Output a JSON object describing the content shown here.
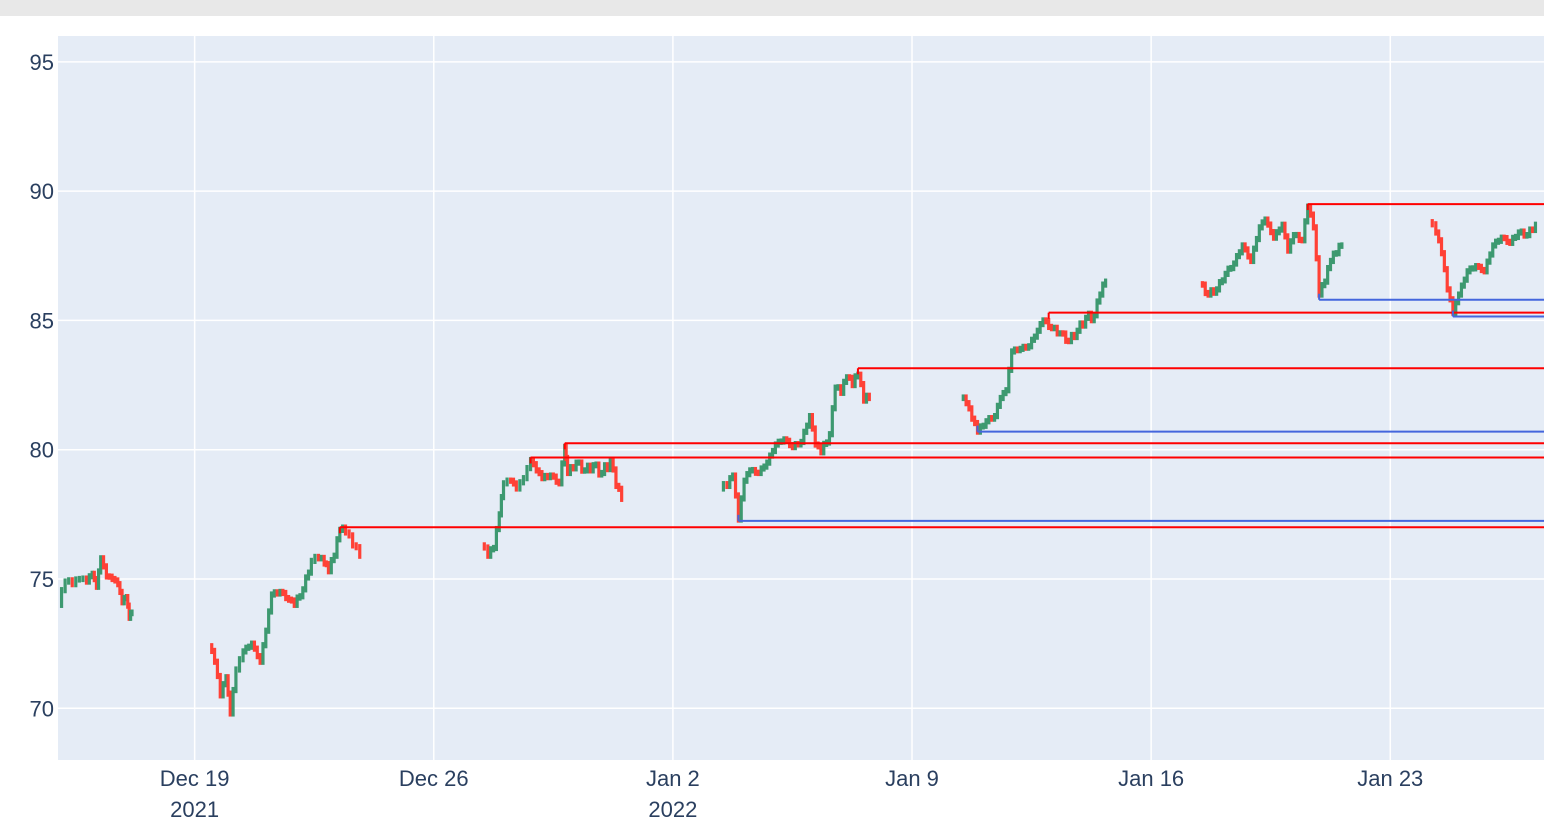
{
  "chart_data": {
    "type": "candlestick",
    "title": "",
    "xlabel": "",
    "ylabel": "",
    "colors": {
      "background": "#e5ecf6",
      "grid": "#ffffff",
      "increasing": "#3d9970",
      "decreasing": "#ff4136",
      "resistance": "#ff0000",
      "support": "#4466dd",
      "tick_text": "#2a3f5f"
    },
    "x_range": [
      "2021-12-15T00:00",
      "2022-01-27T12:00"
    ],
    "ylim": [
      68,
      96
    ],
    "grid": true,
    "legend": "none",
    "y_ticks": [
      {
        "value": 70,
        "label": "70"
      },
      {
        "value": 75,
        "label": "75"
      },
      {
        "value": 80,
        "label": "80"
      },
      {
        "value": 85,
        "label": "85"
      },
      {
        "value": 90,
        "label": "90"
      },
      {
        "value": 95,
        "label": "95"
      }
    ],
    "x_ticks": [
      {
        "date": "2021-12-19",
        "label": "Dec 19",
        "sublabel": "2021"
      },
      {
        "date": "2021-12-26",
        "label": "Dec 26",
        "sublabel": ""
      },
      {
        "date": "2022-01-02",
        "label": "Jan 2",
        "sublabel": "2022"
      },
      {
        "date": "2022-01-09",
        "label": "Jan 9",
        "sublabel": ""
      },
      {
        "date": "2022-01-16",
        "label": "Jan 16",
        "sublabel": ""
      },
      {
        "date": "2022-01-23",
        "label": "Jan 23",
        "sublabel": ""
      }
    ],
    "price_path": [
      {
        "segment": 1,
        "points": [
          [
            "2021-12-15T00:00",
            74.0
          ],
          [
            "2021-12-15T05:00",
            74.9
          ],
          [
            "2021-12-15T10:00",
            74.8
          ],
          [
            "2021-12-15T15:00",
            75.0
          ],
          [
            "2021-12-15T20:00",
            74.9
          ],
          [
            "2021-12-16T00:00",
            75.2
          ],
          [
            "2021-12-16T03:00",
            74.7
          ],
          [
            "2021-12-16T06:00",
            75.8
          ],
          [
            "2021-12-16T10:00",
            75.1
          ],
          [
            "2021-12-16T14:00",
            75.0
          ],
          [
            "2021-12-16T18:00",
            74.8
          ],
          [
            "2021-12-16T21:00",
            74.1
          ],
          [
            "2021-12-17T00:00",
            74.3
          ],
          [
            "2021-12-17T02:00",
            73.5
          ],
          [
            "2021-12-17T04:00",
            73.7
          ]
        ]
      },
      {
        "segment": 2,
        "points": [
          [
            "2021-12-19T10:00",
            72.4
          ],
          [
            "2021-12-19T14:00",
            71.8
          ],
          [
            "2021-12-19T18:00",
            70.5
          ],
          [
            "2021-12-19T22:00",
            71.2
          ],
          [
            "2021-12-20T01:00",
            69.8
          ],
          [
            "2021-12-20T05:00",
            71.5
          ],
          [
            "2021-12-20T10:00",
            72.2
          ],
          [
            "2021-12-20T16:00",
            72.5
          ],
          [
            "2021-12-20T22:00",
            71.8
          ],
          [
            "2021-12-21T02:00",
            73.0
          ],
          [
            "2021-12-21T06:00",
            74.4
          ],
          [
            "2021-12-21T12:00",
            74.5
          ],
          [
            "2021-12-21T18:00",
            74.2
          ],
          [
            "2021-12-21T22:00",
            74.0
          ],
          [
            "2021-12-22T04:00",
            74.6
          ],
          [
            "2021-12-22T10:00",
            75.7
          ],
          [
            "2021-12-22T15:00",
            75.8
          ],
          [
            "2021-12-22T19:00",
            75.6
          ],
          [
            "2021-12-22T22:00",
            75.3
          ],
          [
            "2021-12-23T02:00",
            75.9
          ],
          [
            "2021-12-23T06:00",
            76.9
          ],
          [
            "2021-12-23T10:00",
            76.8
          ],
          [
            "2021-12-23T15:00",
            76.3
          ],
          [
            "2021-12-23T20:00",
            75.9
          ]
        ]
      },
      {
        "segment": 3,
        "points": [
          [
            "2021-12-27T09:00",
            76.3
          ],
          [
            "2021-12-27T14:00",
            75.9
          ],
          [
            "2021-12-27T18:00",
            76.2
          ],
          [
            "2021-12-27T22:00",
            77.5
          ],
          [
            "2021-12-28T01:00",
            78.7
          ],
          [
            "2021-12-28T06:00",
            78.8
          ],
          [
            "2021-12-28T10:00",
            78.5
          ],
          [
            "2021-12-28T15:00",
            78.9
          ],
          [
            "2021-12-28T20:00",
            79.6
          ],
          [
            "2021-12-29T00:00",
            79.2
          ],
          [
            "2021-12-29T04:00",
            78.9
          ],
          [
            "2021-12-29T10:00",
            79.0
          ],
          [
            "2021-12-29T16:00",
            78.7
          ],
          [
            "2021-12-29T20:00",
            80.1
          ],
          [
            "2021-12-29T22:00",
            79.1
          ],
          [
            "2021-12-30T04:00",
            79.5
          ],
          [
            "2021-12-30T10:00",
            79.2
          ],
          [
            "2021-12-30T16:00",
            79.4
          ],
          [
            "2021-12-30T22:00",
            79.1
          ],
          [
            "2021-12-31T04:00",
            79.6
          ],
          [
            "2021-12-31T08:00",
            78.6
          ],
          [
            "2021-12-31T12:00",
            78.1
          ]
        ]
      },
      {
        "segment": 4,
        "points": [
          [
            "2022-01-03T09:00",
            78.5
          ],
          [
            "2022-01-03T14:00",
            78.6
          ],
          [
            "2022-01-03T18:00",
            79.0
          ],
          [
            "2022-01-03T22:00",
            77.3
          ],
          [
            "2022-01-04T02:00",
            78.8
          ],
          [
            "2022-01-04T06:00",
            79.2
          ],
          [
            "2022-01-04T12:00",
            79.1
          ],
          [
            "2022-01-04T18:00",
            79.5
          ],
          [
            "2022-01-05T00:00",
            80.2
          ],
          [
            "2022-01-05T06:00",
            80.4
          ],
          [
            "2022-01-05T12:00",
            80.1
          ],
          [
            "2022-01-05T18:00",
            80.3
          ],
          [
            "2022-01-06T00:00",
            81.3
          ],
          [
            "2022-01-06T04:00",
            80.2
          ],
          [
            "2022-01-06T08:00",
            79.9
          ],
          [
            "2022-01-06T14:00",
            80.6
          ],
          [
            "2022-01-06T18:00",
            82.4
          ],
          [
            "2022-01-06T22:00",
            82.2
          ],
          [
            "2022-01-07T02:00",
            82.8
          ],
          [
            "2022-01-07T06:00",
            82.5
          ],
          [
            "2022-01-07T10:00",
            82.9
          ],
          [
            "2022-01-07T14:00",
            81.9
          ],
          [
            "2022-01-07T18:00",
            82.0
          ]
        ]
      },
      {
        "segment": 5,
        "points": [
          [
            "2022-01-10T10:00",
            82.0
          ],
          [
            "2022-01-10T14:00",
            81.8
          ],
          [
            "2022-01-10T18:00",
            81.2
          ],
          [
            "2022-01-10T22:00",
            80.7
          ],
          [
            "2022-01-11T04:00",
            81.1
          ],
          [
            "2022-01-11T10:00",
            81.3
          ],
          [
            "2022-01-11T14:00",
            82.0
          ],
          [
            "2022-01-11T18:00",
            82.3
          ],
          [
            "2022-01-11T22:00",
            83.8
          ],
          [
            "2022-01-12T04:00",
            83.9
          ],
          [
            "2022-01-12T10:00",
            84.0
          ],
          [
            "2022-01-12T16:00",
            84.6
          ],
          [
            "2022-01-12T20:00",
            85.0
          ],
          [
            "2022-01-13T02:00",
            84.7
          ],
          [
            "2022-01-13T08:00",
            84.5
          ],
          [
            "2022-01-13T14:00",
            84.2
          ],
          [
            "2022-01-13T20:00",
            84.6
          ],
          [
            "2022-01-14T02:00",
            85.1
          ],
          [
            "2022-01-14T08:00",
            85.2
          ],
          [
            "2022-01-14T12:00",
            86.0
          ],
          [
            "2022-01-14T16:00",
            86.5
          ]
        ]
      },
      {
        "segment": 6,
        "points": [
          [
            "2022-01-17T10:00",
            86.4
          ],
          [
            "2022-01-17T16:00",
            86.0
          ],
          [
            "2022-01-17T22:00",
            86.2
          ],
          [
            "2022-01-18T04:00",
            86.8
          ],
          [
            "2022-01-18T10:00",
            87.2
          ],
          [
            "2022-01-18T16:00",
            87.9
          ],
          [
            "2022-01-18T22:00",
            87.3
          ],
          [
            "2022-01-19T04:00",
            88.6
          ],
          [
            "2022-01-19T08:00",
            88.9
          ],
          [
            "2022-01-19T14:00",
            88.2
          ],
          [
            "2022-01-19T20:00",
            88.7
          ],
          [
            "2022-01-20T00:00",
            87.7
          ],
          [
            "2022-01-20T04:00",
            88.3
          ],
          [
            "2022-01-20T10:00",
            88.1
          ],
          [
            "2022-01-20T14:00",
            89.4
          ],
          [
            "2022-01-20T18:00",
            88.6
          ],
          [
            "2022-01-20T22:00",
            86.0
          ],
          [
            "2022-01-21T02:00",
            86.5
          ],
          [
            "2022-01-21T06:00",
            87.3
          ],
          [
            "2022-01-21T10:00",
            87.6
          ],
          [
            "2022-01-21T14:00",
            87.9
          ]
        ]
      },
      {
        "segment": 7,
        "points": [
          [
            "2022-01-24T03:00",
            88.8
          ],
          [
            "2022-01-24T08:00",
            88.4
          ],
          [
            "2022-01-24T12:00",
            87.6
          ],
          [
            "2022-01-24T16:00",
            86.2
          ],
          [
            "2022-01-24T20:00",
            85.3
          ],
          [
            "2022-01-25T00:00",
            86.0
          ],
          [
            "2022-01-25T06:00",
            86.9
          ],
          [
            "2022-01-25T12:00",
            87.1
          ],
          [
            "2022-01-25T18:00",
            86.9
          ],
          [
            "2022-01-26T00:00",
            87.9
          ],
          [
            "2022-01-26T06:00",
            88.2
          ],
          [
            "2022-01-26T12:00",
            88.0
          ],
          [
            "2022-01-26T18:00",
            88.4
          ],
          [
            "2022-01-27T00:00",
            88.3
          ],
          [
            "2022-01-27T06:00",
            88.7
          ]
        ]
      }
    ],
    "levels": [
      {
        "kind": "resistance",
        "start": "2021-12-23T06:00",
        "value": 77.0
      },
      {
        "kind": "resistance",
        "start": "2021-12-28T20:00",
        "value": 79.7
      },
      {
        "kind": "resistance",
        "start": "2021-12-29T20:00",
        "value": 80.25
      },
      {
        "kind": "resistance",
        "start": "2022-01-07T10:00",
        "value": 83.15
      },
      {
        "kind": "resistance",
        "start": "2022-01-13T00:00",
        "value": 85.3
      },
      {
        "kind": "resistance",
        "start": "2022-01-20T14:00",
        "value": 89.5
      },
      {
        "kind": "support",
        "start": "2022-01-03T22:00",
        "value": 77.25
      },
      {
        "kind": "support",
        "start": "2022-01-10T22:00",
        "value": 80.7
      },
      {
        "kind": "support",
        "start": "2022-01-20T22:00",
        "value": 85.8
      },
      {
        "kind": "support",
        "start": "2022-01-24T20:00",
        "value": 85.15
      }
    ]
  }
}
